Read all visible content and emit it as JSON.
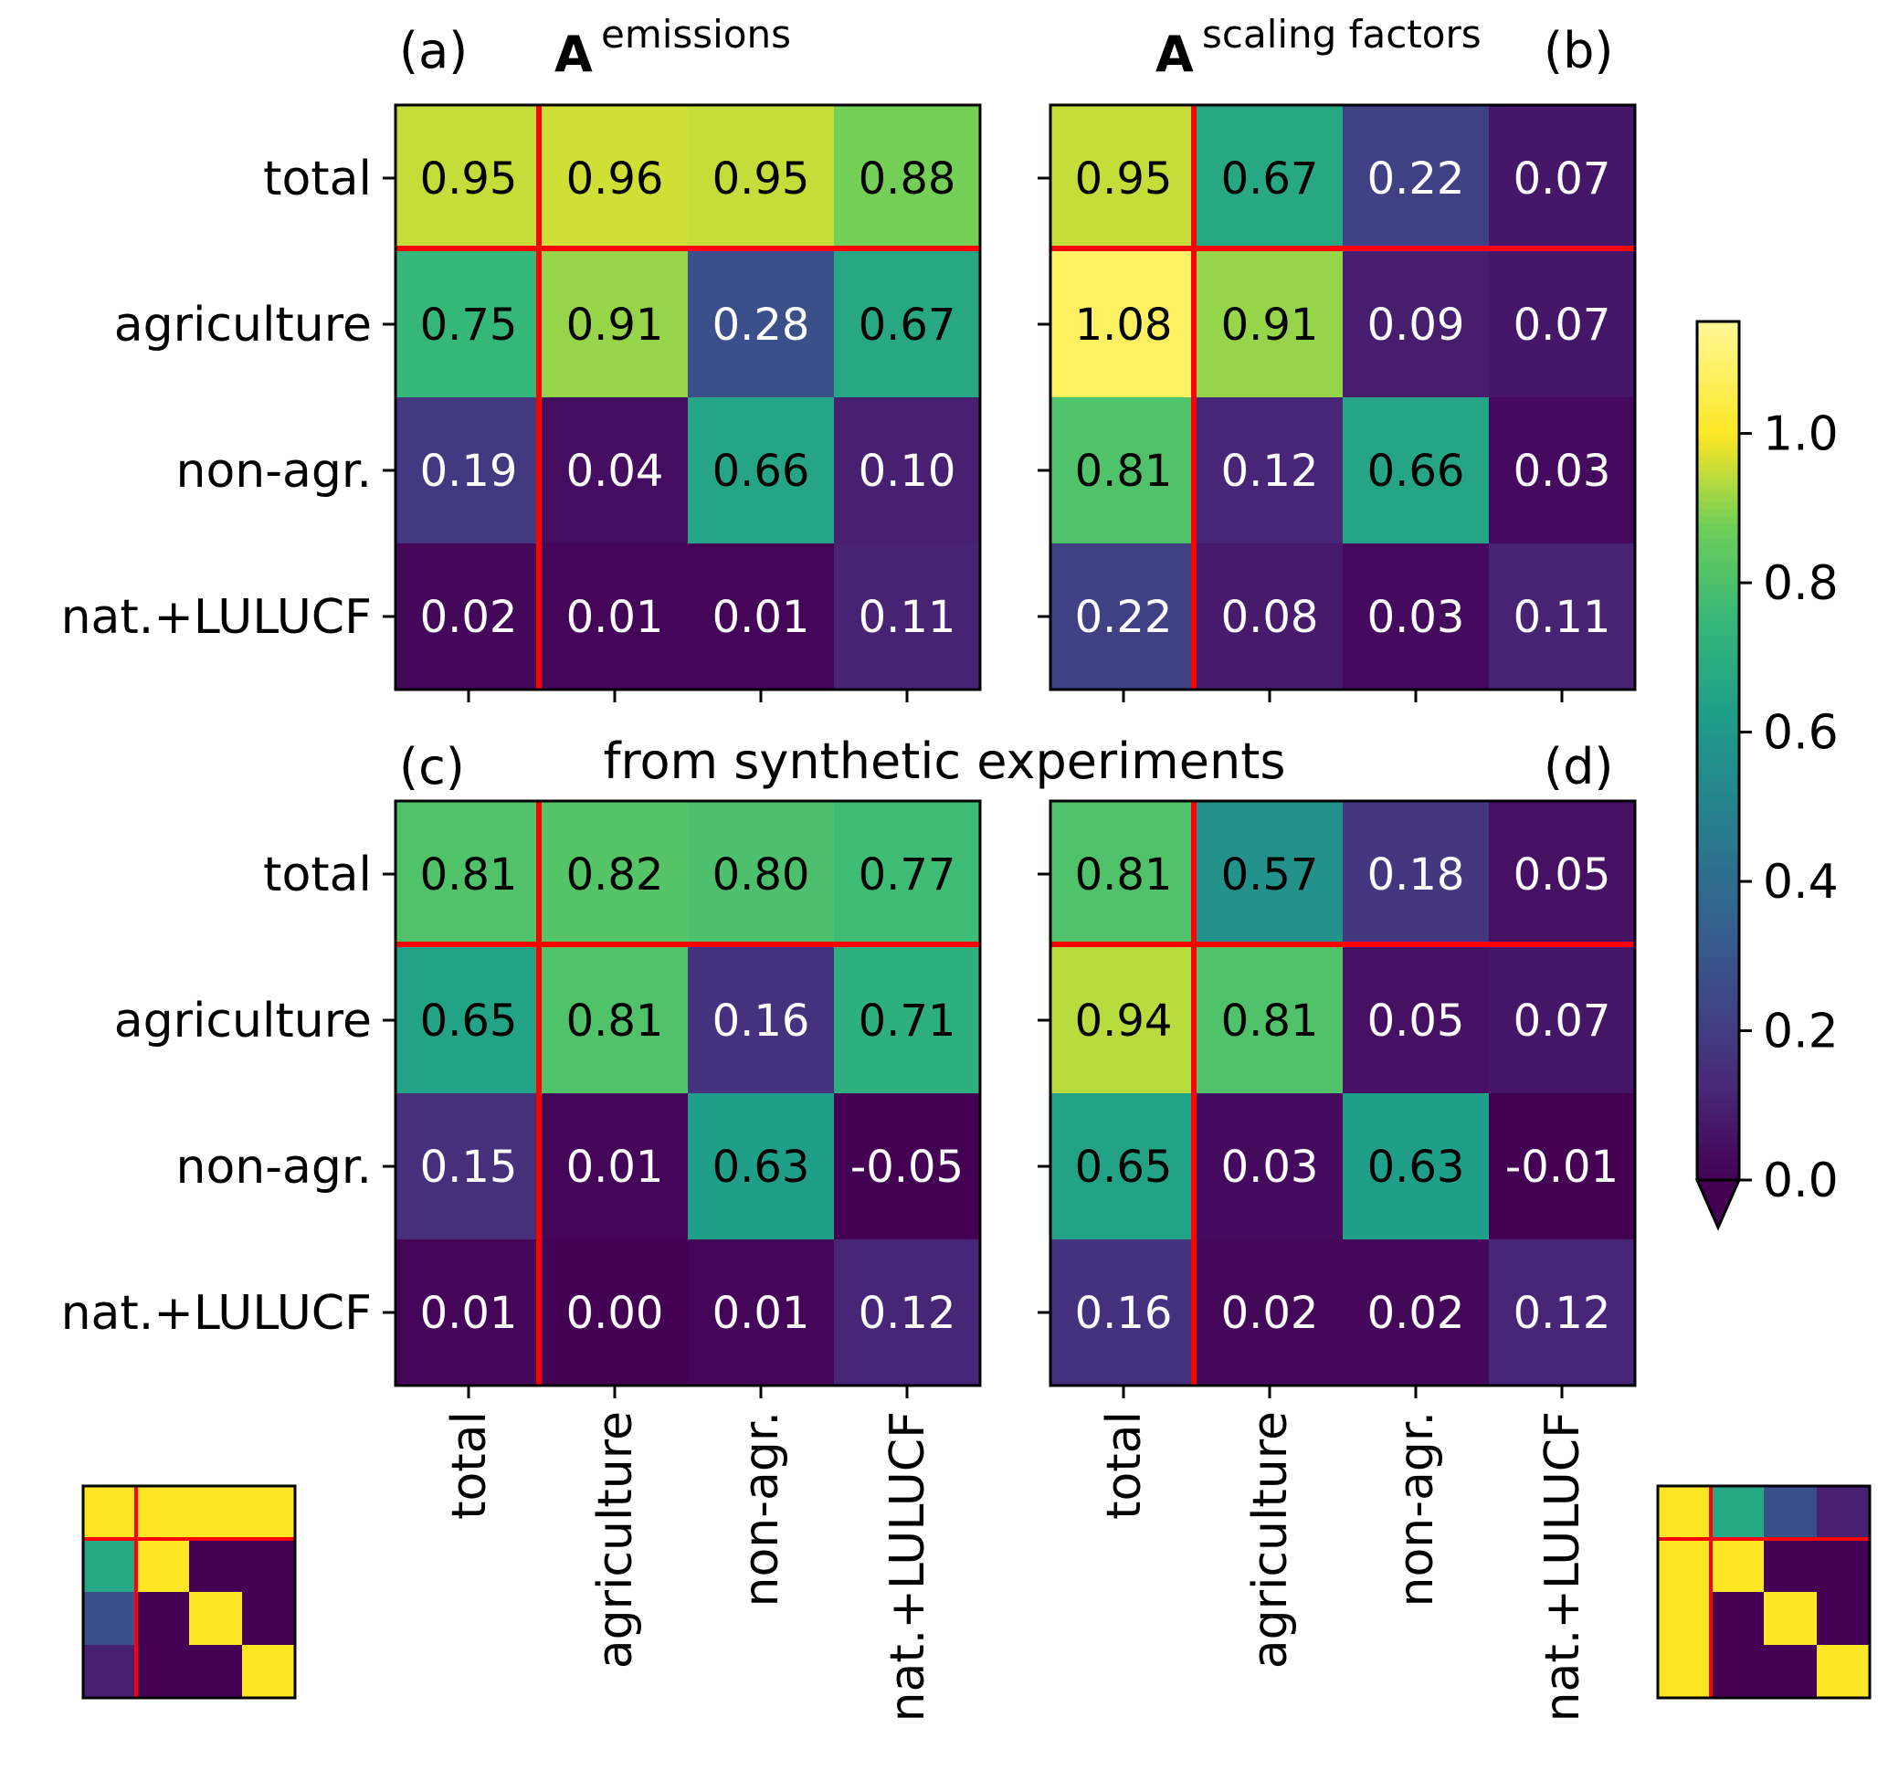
{
  "figure": {
    "header_text": "from synthetic experiments",
    "row_labels": [
      "total",
      "agriculture",
      "non-agr.",
      "nat.+LULUCF"
    ],
    "col_labels": [
      "total",
      "agriculture",
      "non-agr.",
      "nat.+LULUCF"
    ],
    "colorscale": "viridis",
    "divider_color": "#ff0000"
  },
  "chart_data": [
    {
      "panel": "(a)",
      "type": "heatmap",
      "title": {
        "main": "A",
        "superscript": "emissions"
      },
      "rows": [
        "total",
        "agriculture",
        "non-agr.",
        "nat.+LULUCF"
      ],
      "cols": [
        "total",
        "agriculture",
        "non-agr.",
        "nat.+LULUCF"
      ],
      "values": [
        [
          0.95,
          0.96,
          0.95,
          0.88
        ],
        [
          0.75,
          0.91,
          0.28,
          0.67
        ],
        [
          0.19,
          0.04,
          0.66,
          0.1
        ],
        [
          0.02,
          0.01,
          0.01,
          0.11
        ]
      ],
      "labels": [
        [
          "0.95",
          "0.96",
          "0.95",
          "0.88"
        ],
        [
          "0.75",
          "0.91",
          "0.28",
          "0.67"
        ],
        [
          "0.19",
          "0.04",
          "0.66",
          "0.10"
        ],
        [
          "0.02",
          "0.01",
          "0.01",
          "0.11"
        ]
      ]
    },
    {
      "panel": "(b)",
      "type": "heatmap",
      "title": {
        "main": "A",
        "superscript": "scaling factors"
      },
      "rows": [
        "total",
        "agriculture",
        "non-agr.",
        "nat.+LULUCF"
      ],
      "cols": [
        "total",
        "agriculture",
        "non-agr.",
        "nat.+LULUCF"
      ],
      "values": [
        [
          0.95,
          0.67,
          0.22,
          0.07
        ],
        [
          1.08,
          0.91,
          0.09,
          0.07
        ],
        [
          0.81,
          0.12,
          0.66,
          0.03
        ],
        [
          0.22,
          0.08,
          0.03,
          0.11
        ]
      ],
      "labels": [
        [
          "0.95",
          "0.67",
          "0.22",
          "0.07"
        ],
        [
          "1.08",
          "0.91",
          "0.09",
          "0.07"
        ],
        [
          "0.81",
          "0.12",
          "0.66",
          "0.03"
        ],
        [
          "0.22",
          "0.08",
          "0.03",
          "0.11"
        ]
      ]
    },
    {
      "panel": "(c)",
      "type": "heatmap",
      "rows": [
        "total",
        "agriculture",
        "non-agr.",
        "nat.+LULUCF"
      ],
      "cols": [
        "total",
        "agriculture",
        "non-agr.",
        "nat.+LULUCF"
      ],
      "values": [
        [
          0.81,
          0.82,
          0.8,
          0.77
        ],
        [
          0.65,
          0.81,
          0.16,
          0.71
        ],
        [
          0.15,
          0.01,
          0.63,
          -0.05
        ],
        [
          0.01,
          0.0,
          0.01,
          0.12
        ]
      ],
      "labels": [
        [
          "0.81",
          "0.82",
          "0.80",
          "0.77"
        ],
        [
          "0.65",
          "0.81",
          "0.16",
          "0.71"
        ],
        [
          "0.15",
          "0.01",
          "0.63",
          "-0.05"
        ],
        [
          "0.01",
          "0.00",
          "0.01",
          "0.12"
        ]
      ]
    },
    {
      "panel": "(d)",
      "type": "heatmap",
      "rows": [
        "total",
        "agriculture",
        "non-agr.",
        "nat.+LULUCF"
      ],
      "cols": [
        "total",
        "agriculture",
        "non-agr.",
        "nat.+LULUCF"
      ],
      "values": [
        [
          0.81,
          0.57,
          0.18,
          0.05
        ],
        [
          0.94,
          0.81,
          0.05,
          0.07
        ],
        [
          0.65,
          0.03,
          0.63,
          -0.01
        ],
        [
          0.16,
          0.02,
          0.02,
          0.12
        ]
      ],
      "labels": [
        [
          "0.81",
          "0.57",
          "0.18",
          "0.05"
        ],
        [
          "0.94",
          "0.81",
          "0.05",
          "0.07"
        ],
        [
          "0.65",
          "0.03",
          "0.63",
          "-0.01"
        ],
        [
          "0.16",
          "0.02",
          "0.02",
          "0.12"
        ]
      ]
    },
    {
      "panel": "inset-left",
      "type": "heatmap",
      "values": [
        [
          1.0,
          1.0,
          1.0,
          1.0
        ],
        [
          0.67,
          1.0,
          0.0,
          0.0
        ],
        [
          0.28,
          0.0,
          1.0,
          0.0
        ],
        [
          0.1,
          0.0,
          0.0,
          1.0
        ]
      ]
    },
    {
      "panel": "inset-right",
      "type": "heatmap",
      "values": [
        [
          1.0,
          0.67,
          0.28,
          0.1
        ],
        [
          1.0,
          1.0,
          0.0,
          0.0
        ],
        [
          1.0,
          0.0,
          1.0,
          0.0
        ],
        [
          1.0,
          0.0,
          0.0,
          1.0
        ]
      ]
    },
    {
      "panel": "colorbar",
      "type": "colorbar",
      "colormap": "viridis",
      "range": [
        0.0,
        1.15
      ],
      "extend": "min",
      "ticks": [
        0.0,
        0.2,
        0.4,
        0.6,
        0.8,
        1.0
      ],
      "tick_labels": [
        "0.0",
        "0.2",
        "0.4",
        "0.6",
        "0.8",
        "1.0"
      ]
    }
  ]
}
